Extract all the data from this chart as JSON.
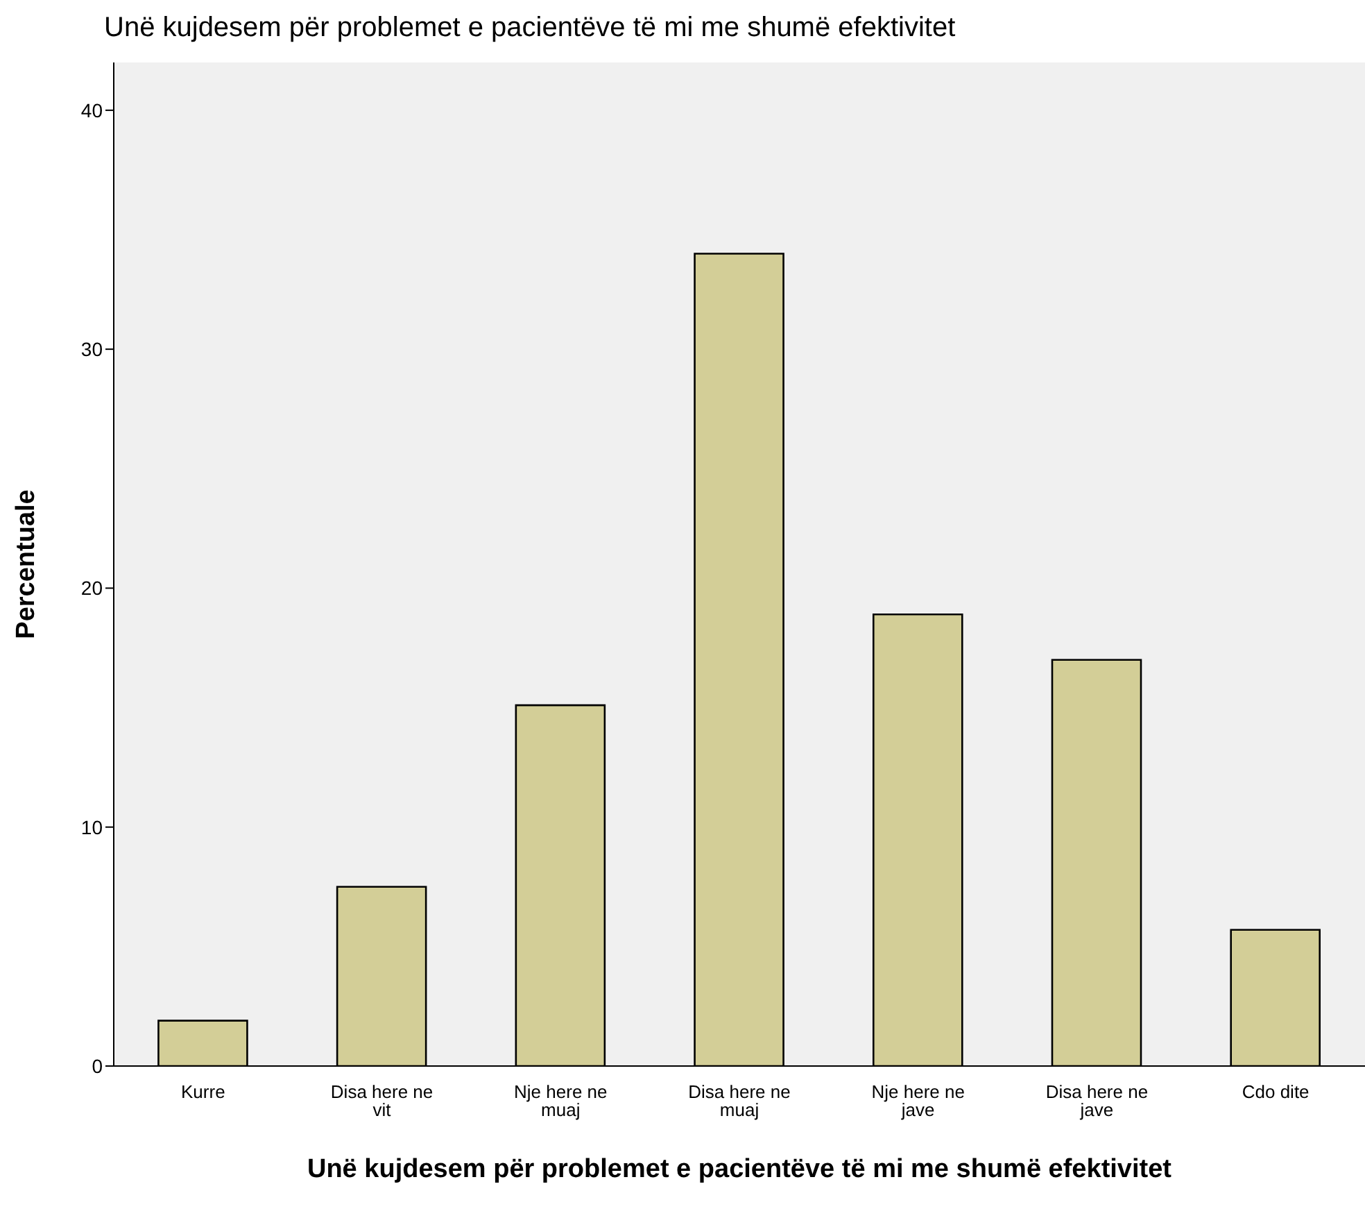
{
  "chart_data": {
    "type": "bar",
    "title": "Unë kujdesem për problemet e pacientëve të mi me shumë efektivitet",
    "xlabel": "Unë kujdesem për problemet e pacientëve të mi me shumë efektivitet",
    "ylabel": "Percentuale",
    "categories": [
      "Kurre",
      "Disa here ne vit",
      "Nje here ne muaj",
      "Disa here ne muaj",
      "Nje here ne jave",
      "Disa here ne jave",
      "Cdo dite"
    ],
    "values": [
      1.9,
      7.5,
      15.1,
      34.0,
      18.9,
      17.0,
      5.7
    ],
    "color": "#d3ce97",
    "ylim": [
      0,
      42
    ],
    "yticks": [
      0,
      10,
      20,
      30,
      40
    ],
    "grid": false
  }
}
